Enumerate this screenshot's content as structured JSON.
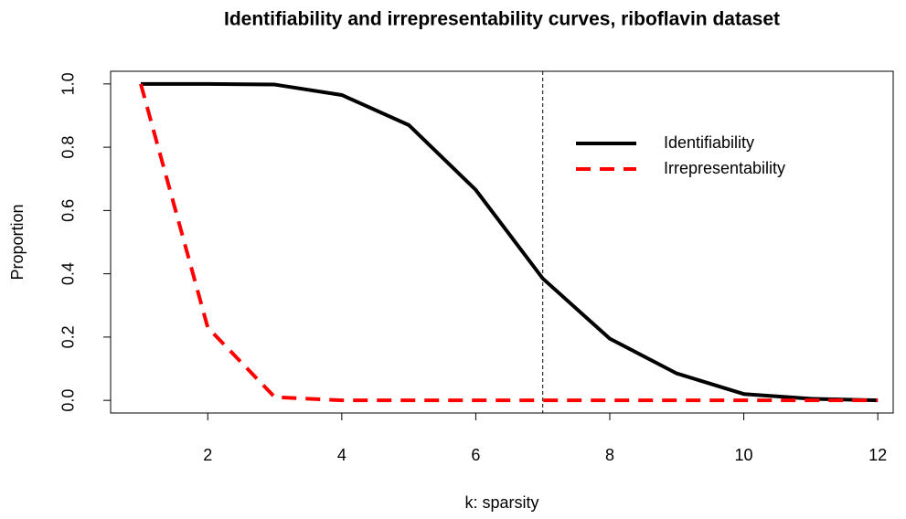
{
  "chart_data": {
    "type": "line",
    "title": "Identifiability and irrepresentability curves, riboflavin dataset",
    "x_label": "k: sparsity",
    "y_label": "Proportion",
    "x": [
      1,
      2,
      3,
      4,
      5,
      6,
      7,
      8,
      9,
      10,
      11,
      12
    ],
    "series": [
      {
        "name": "Identifiability",
        "color": "#000000",
        "dash": "solid",
        "values": [
          1.0,
          1.0,
          0.998,
          0.965,
          0.87,
          0.665,
          0.385,
          0.195,
          0.085,
          0.02,
          0.005,
          0.0
        ]
      },
      {
        "name": "Irrepresentability",
        "color": "#ff0000",
        "dash": "dashed",
        "values": [
          1.0,
          0.23,
          0.01,
          0.0,
          0.0,
          0.0,
          0.0,
          0.0,
          0.0,
          0.0,
          0.0,
          0.0
        ]
      }
    ],
    "vline": 7,
    "xlim": [
      0.55,
      12.23
    ],
    "ylim": [
      -0.04,
      1.04
    ],
    "xticks": [
      2,
      4,
      6,
      8,
      10,
      12
    ],
    "yticks": [
      {
        "value": 0,
        "label": "0.0"
      },
      0.2,
      0.4,
      0.6,
      0.8,
      {
        "value": 1,
        "label": "1.0"
      }
    ],
    "legend_position": "topright"
  }
}
